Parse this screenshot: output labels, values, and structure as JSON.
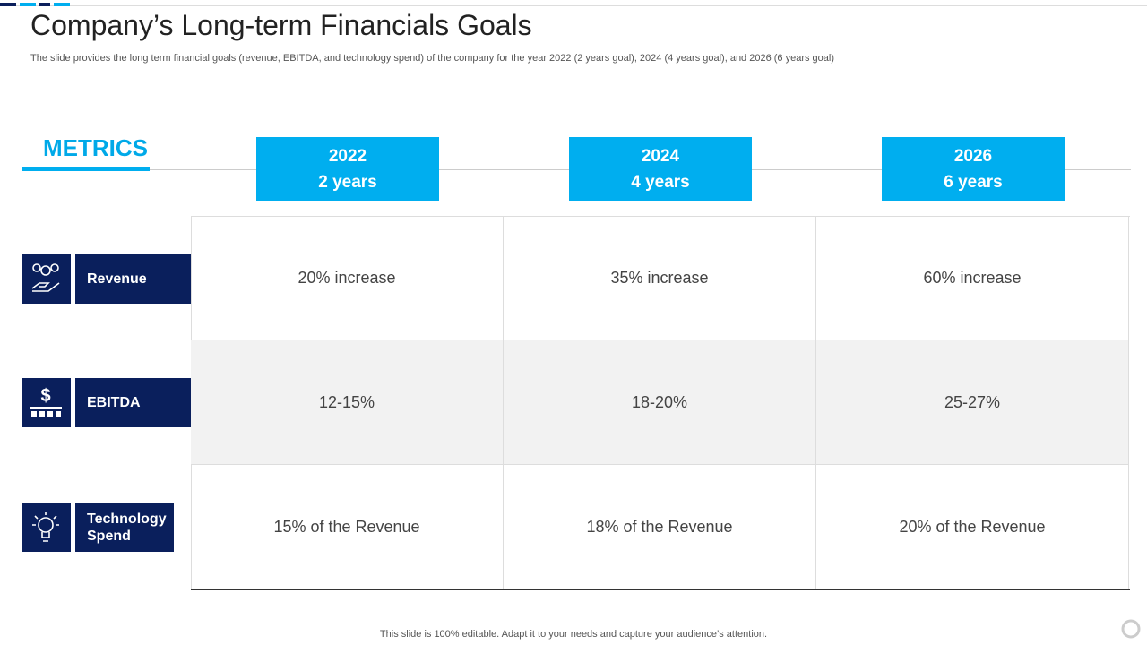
{
  "header": {
    "title": "Company’s Long-term Financials Goals",
    "subtitle": "The slide provides the long term financial goals (revenue, EBITDA, and technology spend) of the company for the year 2022 (2 years goal), 2024 (4 years goal), and 2026 (6 years goal)"
  },
  "table": {
    "metrics_label": "METRICS",
    "columns": [
      {
        "year": "2022",
        "span": "2 years"
      },
      {
        "year": "2024",
        "span": "4 years"
      },
      {
        "year": "2026",
        "span": "6 years"
      }
    ],
    "rows": [
      {
        "label": "Revenue",
        "cells": [
          "20% increase",
          "35% increase",
          "60% increase"
        ]
      },
      {
        "label": "EBITDA",
        "cells": [
          "12-15%",
          "18-20%",
          "25-27%"
        ]
      },
      {
        "label": "Technology Spend",
        "cells": [
          "15% of the Revenue",
          "18% of the Revenue",
          "20% of the Revenue"
        ]
      }
    ]
  },
  "footer": {
    "note": "This slide is 100% editable. Adapt it to your needs and capture your audience’s attention."
  }
}
